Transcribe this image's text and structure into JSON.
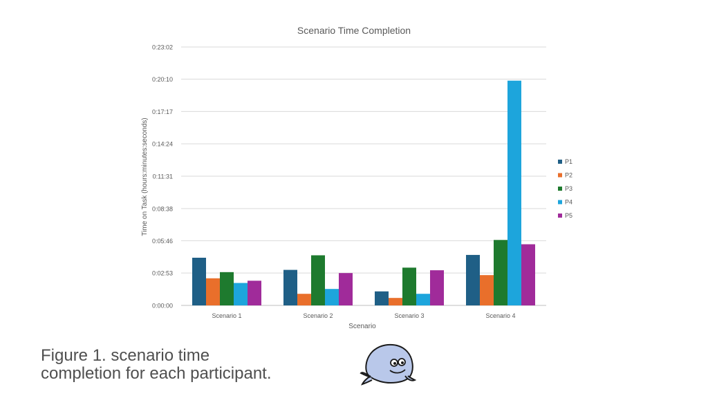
{
  "chart_data": {
    "type": "bar",
    "title": "Scenario Time Completion",
    "xlabel": "Scenario",
    "ylabel": "Time on Task (hours:minutes:seconds)",
    "categories": [
      "Scenario 1",
      "Scenario 2",
      "Scenario 3",
      "Scenario 4"
    ],
    "y_ticks": [
      {
        "label": "0:00:00",
        "value": 0
      },
      {
        "label": "0:02:53",
        "value": 173
      },
      {
        "label": "0:05:46",
        "value": 346
      },
      {
        "label": "0:08:38",
        "value": 518
      },
      {
        "label": "0:11:31",
        "value": 691
      },
      {
        "label": "0:14:24",
        "value": 864
      },
      {
        "label": "0:17:17",
        "value": 1037
      },
      {
        "label": "0:20:10",
        "value": 1210
      },
      {
        "label": "0:23:02",
        "value": 1382
      }
    ],
    "ylim": [
      0,
      1382
    ],
    "value_units": "seconds",
    "legend_position": "right",
    "series": [
      {
        "name": "P1",
        "color": "#1f5f86",
        "values": [
          255,
          190,
          75,
          270
        ]
      },
      {
        "name": "P2",
        "color": "#e96f2b",
        "values": [
          145,
          62,
          40,
          162
        ]
      },
      {
        "name": "P3",
        "color": "#1e7a2e",
        "values": [
          178,
          268,
          202,
          350
        ]
      },
      {
        "name": "P4",
        "color": "#1da5dc",
        "values": [
          120,
          88,
          62,
          1202
        ]
      },
      {
        "name": "P5",
        "color": "#a02b9a",
        "values": [
          132,
          173,
          188,
          327
        ]
      }
    ]
  },
  "caption": {
    "line1": "Figure 1. scenario time",
    "line2": "completion for each participant."
  },
  "mascot": {
    "icon": "whale-mascot-icon",
    "color": "#b9c8ea"
  }
}
